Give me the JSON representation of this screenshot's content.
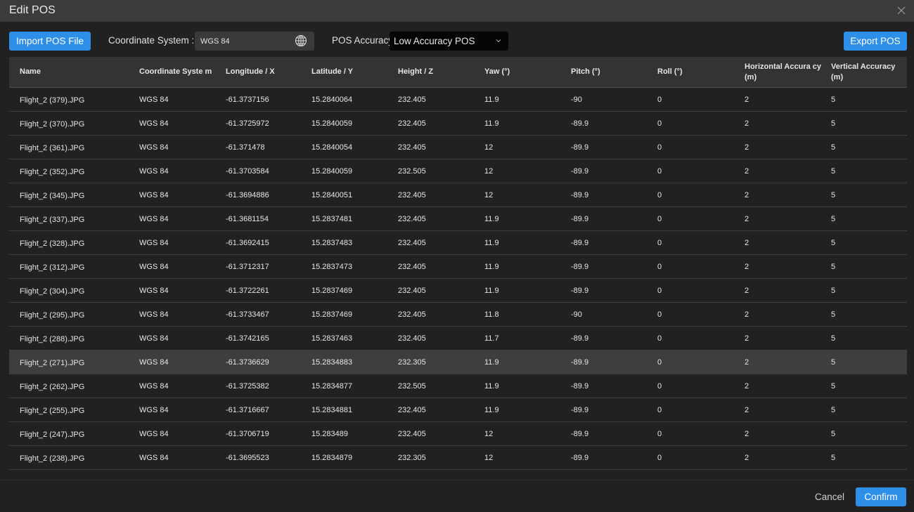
{
  "window": {
    "title": "Edit POS",
    "close_icon": "close-icon"
  },
  "toolbar": {
    "import_label": "Import POS File",
    "coord_label": "Coordinate System :",
    "coord_value": "WGS 84",
    "coord_icon": "globe-icon",
    "accuracy_label": "POS Accuracy:",
    "accuracy_value": "Low Accuracy POS",
    "export_label": "Export POS"
  },
  "colors": {
    "accent": "#2e8fe8",
    "background": "#212121",
    "header": "#333333",
    "selected_row": "#3e3e3e"
  },
  "table": {
    "columns": [
      "Name",
      "Coordinate Syste m",
      "Longitude / X",
      "Latitude / Y",
      "Height / Z",
      "Yaw (°)",
      "Pitch (°)",
      "Roll (°)",
      "Horizontal Accura cy (m)",
      "Vertical Accuracy (m)"
    ],
    "selected_row": 11,
    "rows": [
      [
        "Flight_2 (379).JPG",
        "WGS 84",
        "-61.3737156",
        "15.2840064",
        "232.405",
        "11.9",
        "-90",
        "0",
        "2",
        "5"
      ],
      [
        "Flight_2 (370).JPG",
        "WGS 84",
        "-61.3725972",
        "15.2840059",
        "232.405",
        "11.9",
        "-89.9",
        "0",
        "2",
        "5"
      ],
      [
        "Flight_2 (361).JPG",
        "WGS 84",
        "-61.371478",
        "15.2840054",
        "232.405",
        "12",
        "-89.9",
        "0",
        "2",
        "5"
      ],
      [
        "Flight_2 (352).JPG",
        "WGS 84",
        "-61.3703584",
        "15.2840059",
        "232.505",
        "12",
        "-89.9",
        "0",
        "2",
        "5"
      ],
      [
        "Flight_2 (345).JPG",
        "WGS 84",
        "-61.3694886",
        "15.2840051",
        "232.405",
        "12",
        "-89.9",
        "0",
        "2",
        "5"
      ],
      [
        "Flight_2 (337).JPG",
        "WGS 84",
        "-61.3681154",
        "15.2837481",
        "232.405",
        "11.9",
        "-89.9",
        "0",
        "2",
        "5"
      ],
      [
        "Flight_2 (328).JPG",
        "WGS 84",
        "-61.3692415",
        "15.2837483",
        "232.405",
        "11.9",
        "-89.9",
        "0",
        "2",
        "5"
      ],
      [
        "Flight_2 (312).JPG",
        "WGS 84",
        "-61.3712317",
        "15.2837473",
        "232.405",
        "11.9",
        "-89.9",
        "0",
        "2",
        "5"
      ],
      [
        "Flight_2 (304).JPG",
        "WGS 84",
        "-61.3722261",
        "15.2837469",
        "232.405",
        "11.9",
        "-89.9",
        "0",
        "2",
        "5"
      ],
      [
        "Flight_2 (295).JPG",
        "WGS 84",
        "-61.3733467",
        "15.2837469",
        "232.405",
        "11.8",
        "-90",
        "0",
        "2",
        "5"
      ],
      [
        "Flight_2 (288).JPG",
        "WGS 84",
        "-61.3742165",
        "15.2837463",
        "232.405",
        "11.7",
        "-89.9",
        "0",
        "2",
        "5"
      ],
      [
        "Flight_2 (271).JPG",
        "WGS 84",
        "-61.3736629",
        "15.2834883",
        "232.305",
        "11.9",
        "-89.9",
        "0",
        "2",
        "5"
      ],
      [
        "Flight_2 (262).JPG",
        "WGS 84",
        "-61.3725382",
        "15.2834877",
        "232.505",
        "11.9",
        "-89.9",
        "0",
        "2",
        "5"
      ],
      [
        "Flight_2 (255).JPG",
        "WGS 84",
        "-61.3716667",
        "15.2834881",
        "232.405",
        "11.9",
        "-89.9",
        "0",
        "2",
        "5"
      ],
      [
        "Flight_2 (247).JPG",
        "WGS 84",
        "-61.3706719",
        "15.283489",
        "232.405",
        "12",
        "-89.9",
        "0",
        "2",
        "5"
      ],
      [
        "Flight_2 (238).JPG",
        "WGS 84",
        "-61.3695523",
        "15.2834879",
        "232.305",
        "12",
        "-89.9",
        "0",
        "2",
        "5"
      ]
    ]
  },
  "footer": {
    "cancel_label": "Cancel",
    "confirm_label": "Confirm"
  }
}
